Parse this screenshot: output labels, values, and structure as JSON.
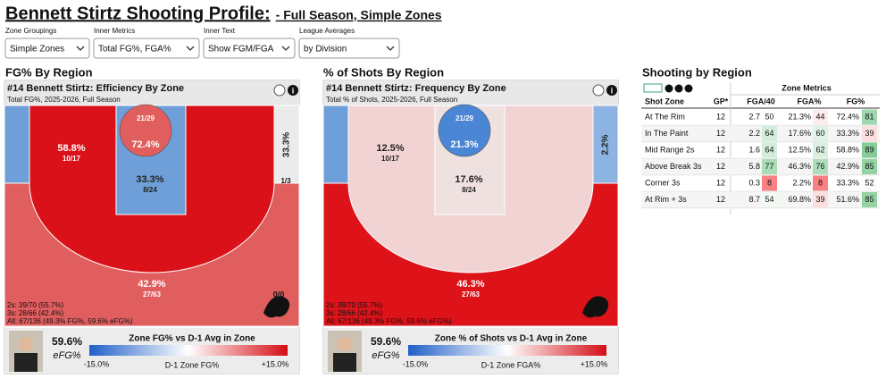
{
  "header": {
    "title": "Bennett Stirtz Shooting Profile:",
    "subtitle": "- Full Season, Simple Zones"
  },
  "filters": [
    {
      "label": "Zone Groupings",
      "value": "Simple Zones"
    },
    {
      "label": "Inner Metrics",
      "value": "Total FG%, FGA%"
    },
    {
      "label": "Inner Text",
      "value": "Show FGM/FGA"
    },
    {
      "label": "League Averages",
      "value": "by Division"
    }
  ],
  "sections": [
    "FG% By Region",
    "% of Shots By Region",
    "Shooting by Region"
  ],
  "panels": [
    {
      "title": "#14 Bennett Stirtz: Efficiency By Zone",
      "subtitle": "Total FG%, 2025-2026, Full Season",
      "zones": {
        "above": {
          "pct": "42.9%",
          "count": "27/63",
          "color": "#e05e5e"
        },
        "corner_left": {
          "color": "#6f9fd8"
        },
        "corner": {
          "pct": "33.3%",
          "count": "1/3",
          "color": "#ebebeb"
        },
        "mid": {
          "pct": "58.8%",
          "count": "10/17",
          "color": "#da1119"
        },
        "paint": {
          "pct": "33.3%",
          "count": "8/24",
          "color": "#6f9fd8"
        },
        "rim": {
          "pct": "72.4%",
          "count": "21/29",
          "color": "#e05e5e"
        }
      },
      "notes": [
        "2s: 39/70 (55.7%)",
        "3s: 28/66 (42.4%)",
        "All: 67/136 (49.3% FG%, 59.6% eFG%)"
      ],
      "extra": "0/0",
      "efg": "59.6%",
      "efg_label": "eFG%",
      "legend": {
        "title": "Zone FG% vs D-1 Avg in Zone",
        "min": "-15.0%",
        "label": "D-1 Zone FG%",
        "max": "+15.0%"
      }
    },
    {
      "title": "#14 Bennett Stirtz: Frequency By Zone",
      "subtitle": "Total % of Shots, 2025-2026, Full Season",
      "zones": {
        "above": {
          "pct": "46.3%",
          "count": "27/63",
          "color": "#de1219"
        },
        "corner_left": {
          "color": "#6f9fd8"
        },
        "corner": {
          "pct": "2.2%",
          "color": "#8db3e2"
        },
        "mid": {
          "pct": "12.5%",
          "count": "10/17",
          "color": "#f2d3d3"
        },
        "paint": {
          "pct": "17.6%",
          "count": "8/24",
          "color": "#f0e1e1"
        },
        "rim": {
          "pct": "21.3%",
          "count": "21/29",
          "color": "#4a86d3"
        }
      },
      "notes": [
        "2s: 39/70 (55.7%)",
        "3s: 28/66 (42.4%)",
        "All: 67/136 (49.3% FG%, 59.6% eFG%)"
      ],
      "efg": "59.6%",
      "efg_label": "eFG%",
      "legend": {
        "title": "Zone % of Shots vs D-1 Avg in Zone",
        "min": "-15.0%",
        "label": "D-1 Zone FGA%",
        "max": "+15.0%"
      }
    }
  ],
  "table": {
    "group_header": "Zone Metrics",
    "columns": [
      "Shot Zone",
      "GP*",
      "FGA/40",
      "FGA%",
      "FG%"
    ],
    "rows": [
      [
        "At The Rim",
        "12",
        "2.7",
        50,
        "21.3%",
        44,
        "72.4%",
        81
      ],
      [
        "In The Paint",
        "12",
        "2.2",
        64,
        "17.6%",
        60,
        "33.3%",
        39
      ],
      [
        "Mid Range 2s",
        "12",
        "1.6",
        64,
        "12.5%",
        62,
        "58.8%",
        89
      ],
      [
        "Above Break 3s",
        "12",
        "5.8",
        77,
        "46.3%",
        76,
        "42.9%",
        85
      ],
      [
        "Corner 3s",
        "12",
        "0.3",
        8,
        "2.2%",
        8,
        "33.3%",
        52
      ],
      [
        "At Rim + 3s",
        "12",
        "8.7",
        54,
        "69.8%",
        39,
        "51.6%",
        85
      ]
    ]
  }
}
